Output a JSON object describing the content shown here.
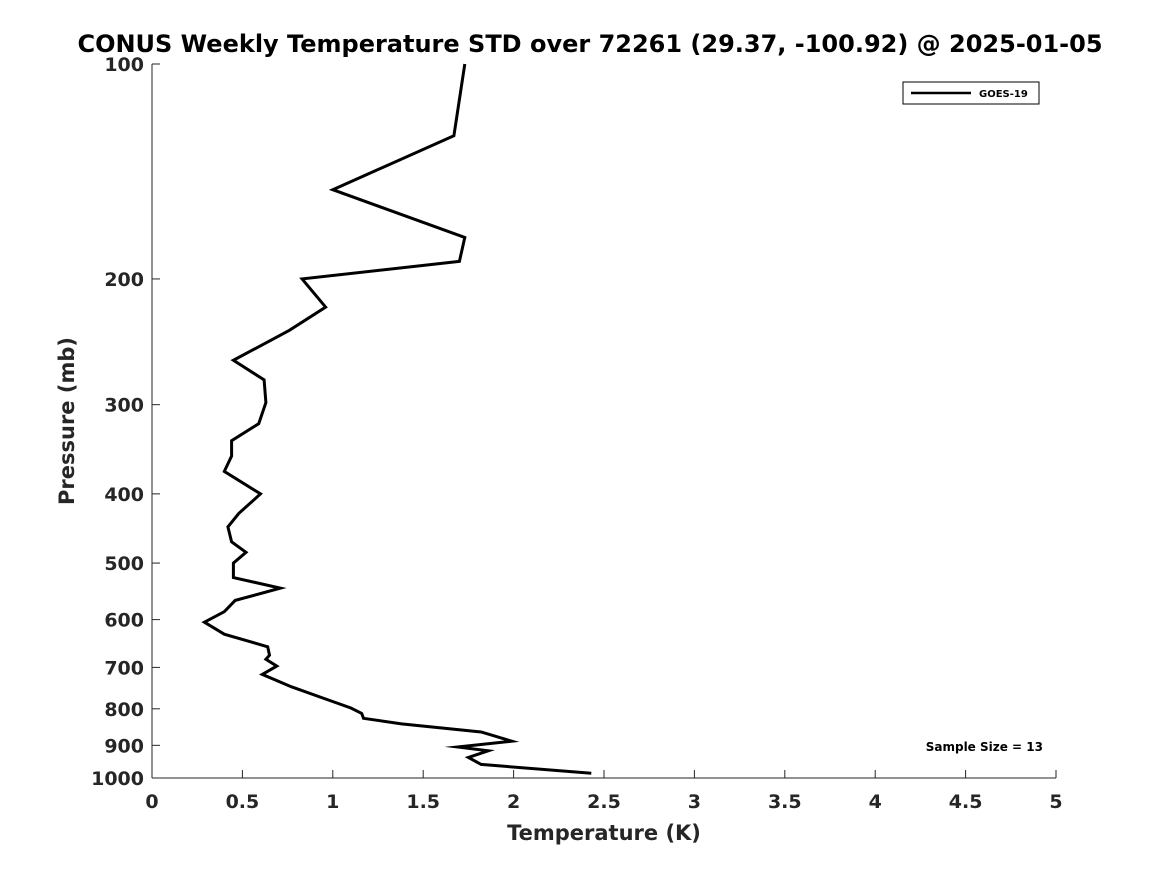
{
  "chart_data": {
    "type": "line",
    "title": "CONUS Weekly Temperature STD over 72261 (29.37, -100.92) @ 2025-01-05",
    "xlabel": "Temperature (K)",
    "ylabel": "Pressure (mb)",
    "xlim": [
      0,
      5
    ],
    "ylim": [
      100,
      1000
    ],
    "y_scale": "log",
    "y_reversed": true,
    "x_ticks": [
      0,
      0.5,
      1,
      1.5,
      2,
      2.5,
      3,
      3.5,
      4,
      4.5,
      5
    ],
    "x_tick_labels": [
      "0",
      "0.5",
      "1",
      "1.5",
      "2",
      "2.5",
      "3",
      "3.5",
      "4",
      "4.5",
      "5"
    ],
    "y_ticks": [
      100,
      200,
      300,
      400,
      500,
      600,
      700,
      800,
      900,
      1000
    ],
    "y_tick_labels": [
      "100",
      "200",
      "300",
      "400",
      "500",
      "600",
      "700",
      "800",
      "900",
      "1000"
    ],
    "grid": false,
    "legend_position": "top-right",
    "annotation": "Sample Size = 13",
    "line_color": "#000000",
    "series": [
      {
        "name": "GOES-19",
        "points": [
          [
            1.73,
            100
          ],
          [
            1.67,
            126
          ],
          [
            1.0,
            150
          ],
          [
            1.73,
            175
          ],
          [
            1.7,
            189
          ],
          [
            0.83,
            200
          ],
          [
            0.96,
            219
          ],
          [
            0.76,
            236
          ],
          [
            0.45,
            260
          ],
          [
            0.62,
            277
          ],
          [
            0.63,
            298
          ],
          [
            0.59,
            319
          ],
          [
            0.44,
            337
          ],
          [
            0.44,
            354
          ],
          [
            0.4,
            372
          ],
          [
            0.6,
            400
          ],
          [
            0.48,
            426
          ],
          [
            0.42,
            445
          ],
          [
            0.44,
            467
          ],
          [
            0.52,
            483
          ],
          [
            0.45,
            500
          ],
          [
            0.45,
            524
          ],
          [
            0.71,
            542
          ],
          [
            0.46,
            564
          ],
          [
            0.4,
            585
          ],
          [
            0.29,
            605
          ],
          [
            0.4,
            629
          ],
          [
            0.64,
            655
          ],
          [
            0.65,
            673
          ],
          [
            0.63,
            682
          ],
          [
            0.69,
            697
          ],
          [
            0.61,
            716
          ],
          [
            0.77,
            745
          ],
          [
            0.96,
            775
          ],
          [
            1.1,
            798
          ],
          [
            1.16,
            812
          ],
          [
            1.17,
            825
          ],
          [
            1.38,
            840
          ],
          [
            1.82,
            862
          ],
          [
            1.99,
            888
          ],
          [
            1.69,
            905
          ],
          [
            1.86,
            916
          ],
          [
            1.75,
            936
          ],
          [
            1.82,
            957
          ],
          [
            2.43,
            985
          ]
        ]
      }
    ]
  }
}
